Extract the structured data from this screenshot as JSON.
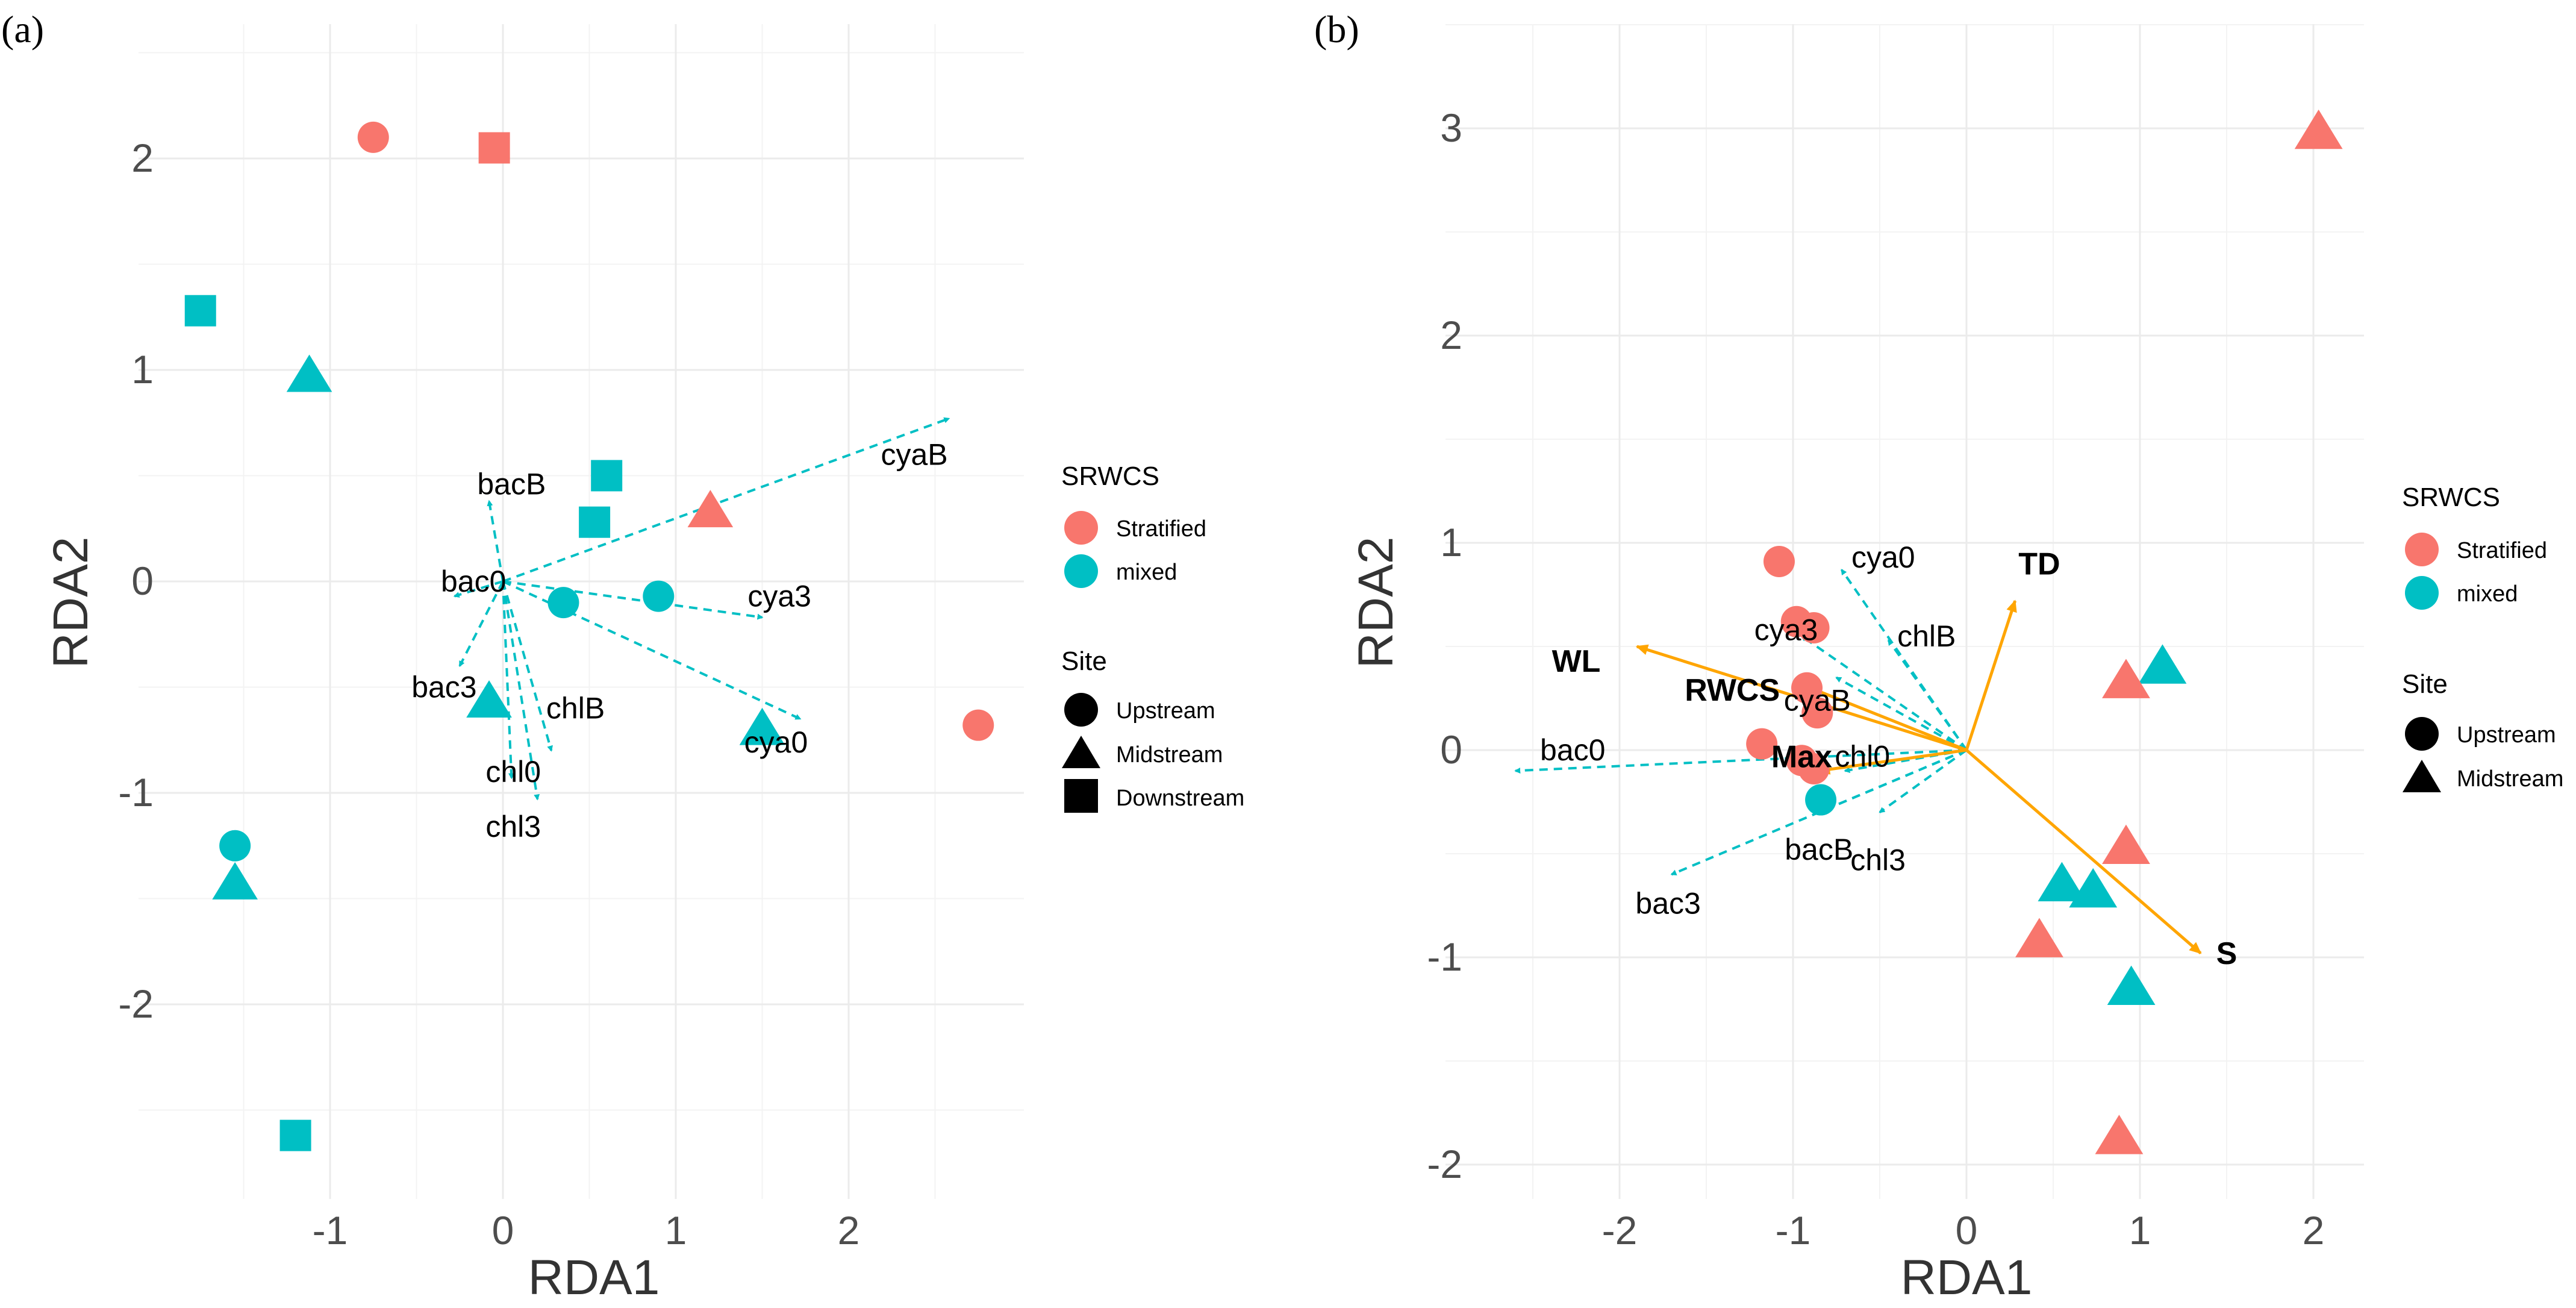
{
  "colors": {
    "stratified": "#F8766D",
    "mixed": "#00BFC4",
    "env_arrow": "#FFA500",
    "grid": "#ebebeb"
  },
  "chart_data": [
    {
      "type": "scatter",
      "panel_label": "(a)",
      "xlabel": "RDA1",
      "ylabel": "RDA2",
      "xlim": [
        -1.9,
        3.0
      ],
      "ylim": [
        -2.7,
        2.3
      ],
      "xticks": [
        -1,
        0,
        1,
        2
      ],
      "yticks": [
        -2,
        -1,
        0,
        1,
        2
      ],
      "xtick_labels": [
        "-1",
        "0",
        "1",
        "2"
      ],
      "ytick_labels": [
        "-2",
        "-1",
        "0",
        "1",
        "2"
      ],
      "grid": true,
      "points": [
        {
          "x": -0.75,
          "y": 2.1,
          "group": "Stratified",
          "site": "Upstream"
        },
        {
          "x": -0.05,
          "y": 2.05,
          "group": "Stratified",
          "site": "Downstream"
        },
        {
          "x": -1.75,
          "y": 1.28,
          "group": "mixed",
          "site": "Downstream"
        },
        {
          "x": -1.12,
          "y": 0.97,
          "group": "mixed",
          "site": "Midstream"
        },
        {
          "x": 0.6,
          "y": 0.5,
          "group": "mixed",
          "site": "Downstream"
        },
        {
          "x": 0.53,
          "y": 0.28,
          "group": "mixed",
          "site": "Downstream"
        },
        {
          "x": 1.2,
          "y": 0.33,
          "group": "Stratified",
          "site": "Midstream"
        },
        {
          "x": 0.35,
          "y": -0.1,
          "group": "mixed",
          "site": "Upstream"
        },
        {
          "x": 0.9,
          "y": -0.07,
          "group": "mixed",
          "site": "Upstream"
        },
        {
          "x": -0.08,
          "y": -0.57,
          "group": "mixed",
          "site": "Midstream"
        },
        {
          "x": 1.5,
          "y": -0.7,
          "group": "mixed",
          "site": "Midstream"
        },
        {
          "x": 2.75,
          "y": -0.68,
          "group": "Stratified",
          "site": "Upstream"
        },
        {
          "x": -1.55,
          "y": -1.25,
          "group": "mixed",
          "site": "Upstream"
        },
        {
          "x": -1.55,
          "y": -1.43,
          "group": "mixed",
          "site": "Midstream"
        },
        {
          "x": -1.2,
          "y": -2.62,
          "group": "mixed",
          "site": "Downstream"
        }
      ],
      "species_arrows": [
        {
          "label": "cyaB",
          "x": 2.58,
          "y": 0.77,
          "lx": 2.38,
          "ly": 0.6
        },
        {
          "label": "bacB",
          "x": -0.08,
          "y": 0.38,
          "lx": 0.05,
          "ly": 0.46
        },
        {
          "label": "bac0",
          "x": -0.28,
          "y": -0.07,
          "lx": -0.17,
          "ly": 0.0
        },
        {
          "label": "cya3",
          "x": 1.5,
          "y": -0.17,
          "lx": 1.6,
          "ly": -0.07
        },
        {
          "label": "bac3",
          "x": -0.25,
          "y": -0.4,
          "lx": -0.34,
          "ly": -0.5
        },
        {
          "label": "chlB",
          "x": 0.28,
          "y": -0.8,
          "lx": 0.42,
          "ly": -0.6
        },
        {
          "label": "cya0",
          "x": 1.72,
          "y": -0.65,
          "lx": 1.58,
          "ly": -0.76
        },
        {
          "label": "chl0",
          "x": 0.05,
          "y": -0.93,
          "lx": 0.06,
          "ly": -0.9
        },
        {
          "label": "chl3",
          "x": 0.2,
          "y": -1.03,
          "lx": 0.06,
          "ly": -1.16
        }
      ],
      "legend": {
        "position": "right",
        "color_title": "SRWCS",
        "color_entries": [
          "Stratified",
          "mixed"
        ],
        "shape_title": "Site",
        "shape_entries": [
          "Upstream",
          "Midstream",
          "Downstream"
        ]
      }
    },
    {
      "type": "scatter",
      "panel_label": "(b)",
      "xlabel": "RDA1",
      "ylabel": "RDA2",
      "xlim": [
        -2.8,
        2.3
      ],
      "ylim": [
        -2.2,
        3.2
      ],
      "xticks": [
        -2,
        -1,
        0,
        1,
        2
      ],
      "yticks": [
        -2,
        -1,
        0,
        1,
        2,
        3
      ],
      "xtick_labels": [
        "-2",
        "-1",
        "0",
        "1",
        "2"
      ],
      "ytick_labels": [
        "-2",
        "-1",
        "0",
        "1",
        "2",
        "3"
      ],
      "grid": true,
      "points": [
        {
          "x": 2.03,
          "y": 2.98,
          "group": "Stratified",
          "site": "Midstream"
        },
        {
          "x": -1.08,
          "y": 0.91,
          "group": "Stratified",
          "site": "Upstream"
        },
        {
          "x": -0.98,
          "y": 0.62,
          "group": "Stratified",
          "site": "Upstream"
        },
        {
          "x": -0.88,
          "y": 0.59,
          "group": "Stratified",
          "site": "Upstream"
        },
        {
          "x": -0.92,
          "y": 0.3,
          "group": "Stratified",
          "site": "Upstream"
        },
        {
          "x": -0.86,
          "y": 0.18,
          "group": "Stratified",
          "site": "Upstream"
        },
        {
          "x": -1.18,
          "y": 0.03,
          "group": "Stratified",
          "site": "Upstream"
        },
        {
          "x": -0.95,
          "y": -0.05,
          "group": "Stratified",
          "site": "Upstream"
        },
        {
          "x": -0.88,
          "y": -0.09,
          "group": "Stratified",
          "site": "Upstream"
        },
        {
          "x": -0.84,
          "y": -0.24,
          "group": "mixed",
          "site": "Upstream"
        },
        {
          "x": 1.13,
          "y": 0.4,
          "group": "mixed",
          "site": "Midstream"
        },
        {
          "x": 0.92,
          "y": 0.33,
          "group": "Stratified",
          "site": "Midstream"
        },
        {
          "x": 0.92,
          "y": -0.47,
          "group": "Stratified",
          "site": "Midstream"
        },
        {
          "x": 0.55,
          "y": -0.65,
          "group": "mixed",
          "site": "Midstream"
        },
        {
          "x": 0.73,
          "y": -0.68,
          "group": "mixed",
          "site": "Midstream"
        },
        {
          "x": 0.42,
          "y": -0.92,
          "group": "Stratified",
          "site": "Midstream"
        },
        {
          "x": 0.95,
          "y": -1.15,
          "group": "mixed",
          "site": "Midstream"
        },
        {
          "x": 0.88,
          "y": -1.87,
          "group": "Stratified",
          "site": "Midstream"
        }
      ],
      "species_arrows": [
        {
          "label": "cya0",
          "x": -0.72,
          "y": 0.87,
          "lx": -0.48,
          "ly": 0.93
        },
        {
          "label": "cya3",
          "x": -0.95,
          "y": 0.55,
          "lx": -1.04,
          "ly": 0.58
        },
        {
          "label": "chlB",
          "x": -0.45,
          "y": 0.53,
          "lx": -0.23,
          "ly": 0.55
        },
        {
          "label": "cyaB",
          "x": -0.75,
          "y": 0.35,
          "lx": -0.86,
          "ly": 0.24
        },
        {
          "label": "bac0",
          "x": -2.6,
          "y": -0.1,
          "lx": -2.27,
          "ly": 0.0
        },
        {
          "label": "chl0",
          "x": -0.7,
          "y": -0.1,
          "lx": -0.6,
          "ly": -0.03
        },
        {
          "label": "bacB",
          "x": -0.85,
          "y": -0.3,
          "lx": -0.85,
          "ly": -0.48
        },
        {
          "label": "chl3",
          "x": -0.5,
          "y": -0.3,
          "lx": -0.51,
          "ly": -0.53
        },
        {
          "label": "bac3",
          "x": -1.7,
          "y": -0.6,
          "lx": -1.72,
          "ly": -0.74
        }
      ],
      "env_arrows": [
        {
          "label": "TD",
          "x": 0.28,
          "y": 0.72,
          "lx": 0.42,
          "ly": 0.9
        },
        {
          "label": "WL",
          "x": -1.9,
          "y": 0.5,
          "lx": -2.25,
          "ly": 0.43
        },
        {
          "label": "RWCS",
          "x": -0.9,
          "y": 0.3,
          "lx": -1.35,
          "ly": 0.29
        },
        {
          "label": "Max",
          "x": -0.85,
          "y": -0.1,
          "lx": -0.95,
          "ly": -0.03
        },
        {
          "label": "S",
          "x": 1.35,
          "y": -0.98,
          "lx": 1.5,
          "ly": -0.98
        }
      ],
      "legend": {
        "position": "right",
        "color_title": "SRWCS",
        "color_entries": [
          "Stratified",
          "mixed"
        ],
        "shape_title": "Site",
        "shape_entries": [
          "Upstream",
          "Midstream"
        ]
      }
    }
  ]
}
